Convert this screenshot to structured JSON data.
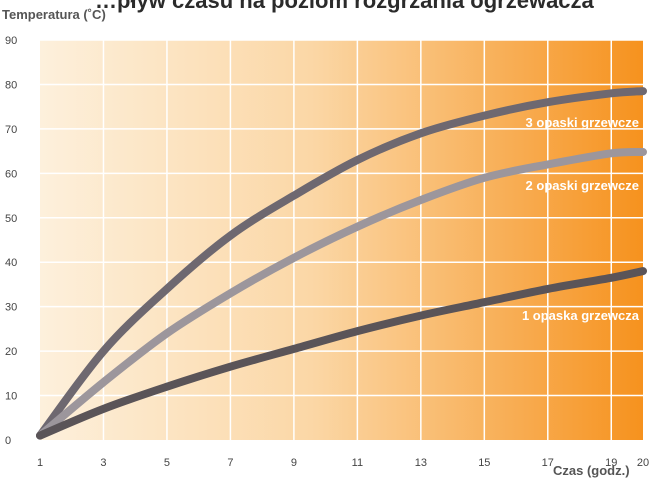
{
  "chart_data": {
    "type": "line",
    "title": "…pływ czasu na poziom rozgrzania ogrzewacza",
    "ylabel": "Temperatura (˚C)",
    "xlabel": "Czas (godz.)",
    "xlim": [
      1,
      20
    ],
    "ylim": [
      0,
      90
    ],
    "x_ticks": [
      "1",
      "3",
      "5",
      "7",
      "9",
      "11",
      "13",
      "15",
      "17",
      "19",
      "20"
    ],
    "y_ticks": [
      "0",
      "10",
      "20",
      "30",
      "40",
      "50",
      "60",
      "70",
      "80",
      "90"
    ],
    "grid": true,
    "x": [
      1,
      3,
      5,
      7,
      9,
      11,
      13,
      15,
      17,
      19,
      20
    ],
    "series": [
      {
        "name": "3 opaski grzewcze",
        "color": "#6e6870",
        "values": [
          1,
          20,
          34,
          46,
          55,
          63,
          69,
          73,
          76,
          78,
          78.5
        ]
      },
      {
        "name": "2 opaski grzewcze",
        "color": "#9c969c",
        "values": [
          1,
          13,
          24,
          33,
          41,
          48,
          54,
          59,
          62,
          64.5,
          64.8
        ]
      },
      {
        "name": "1 opaska grzewcza",
        "color": "#5a5458",
        "values": [
          1,
          7,
          12,
          16.5,
          20.5,
          24.5,
          28,
          31,
          34,
          36.5,
          38
        ]
      }
    ],
    "background": {
      "from": "#fdf0dc",
      "to": "#f6921e"
    }
  }
}
